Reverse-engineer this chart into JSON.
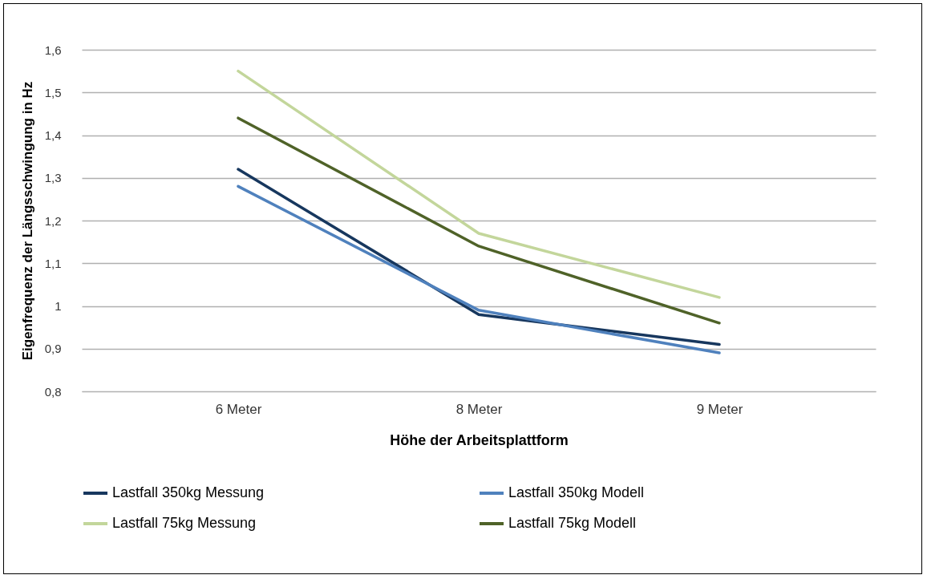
{
  "chart_data": {
    "type": "line",
    "xlabel": "Höhe der Arbeitsplattform",
    "ylabel": "Eigenfrequenz der Längsschwingung in Hz",
    "categories": [
      "6 Meter",
      "8 Meter",
      "9 Meter"
    ],
    "series": [
      {
        "name": "Lastfall 350kg Messung",
        "color": "#17375e",
        "values": [
          1.32,
          0.98,
          0.91
        ]
      },
      {
        "name": "Lastfall 350kg Modell",
        "color": "#4f81bd",
        "values": [
          1.28,
          0.99,
          0.89
        ]
      },
      {
        "name": "Lastfall 75kg Messung",
        "color": "#c3d69b",
        "values": [
          1.55,
          1.17,
          1.02
        ]
      },
      {
        "name": "Lastfall 75kg Modell",
        "color": "#4f6228",
        "values": [
          1.44,
          1.14,
          0.96
        ]
      }
    ],
    "ylim": [
      0.8,
      1.6
    ],
    "yticks": [
      {
        "value": 0.8,
        "label": "0,8"
      },
      {
        "value": 0.9,
        "label": "0,9"
      },
      1,
      {
        "value": 1.1,
        "label": "1,1"
      },
      {
        "value": 1.2,
        "label": "1,2"
      },
      {
        "value": 1.3,
        "label": "1,3"
      },
      {
        "value": 1.4,
        "label": "1,4"
      },
      {
        "value": 1.5,
        "label": "1,5"
      },
      {
        "value": 1.6,
        "label": "1,6"
      }
    ],
    "grid": "y",
    "legend": "bottom",
    "marker": "none",
    "line_style": "solid"
  }
}
